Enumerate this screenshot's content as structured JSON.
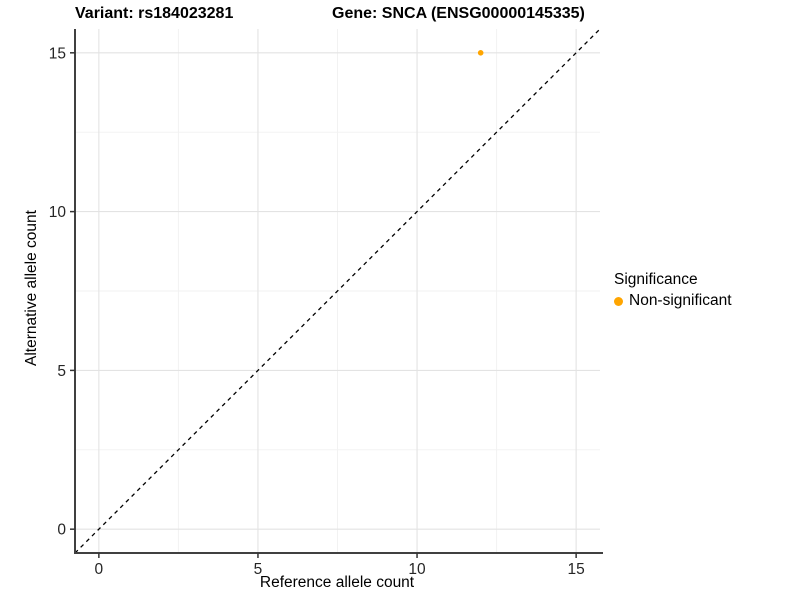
{
  "titles": {
    "variant": "Variant: rs184023281",
    "gene": "Gene: SNCA (ENSG00000145335)"
  },
  "legend": {
    "title": "Significance",
    "items": [
      {
        "label": "Non-significant",
        "color": "#FFA500"
      }
    ]
  },
  "colors": {
    "background": "#FFFFFF",
    "grid_major": "#E3E3E3",
    "grid_minor": "#F1F1F1",
    "axis_line": "#404040",
    "tick_mark": "#333333",
    "tick_text": "#262626",
    "identity_line": "#000000",
    "point": "#FFA500"
  },
  "chart_data": {
    "type": "scatter",
    "title_left": "Variant: rs184023281",
    "title_right": "Gene: SNCA (ENSG00000145335)",
    "xlabel": "Reference allele count",
    "ylabel": "Alternative allele count",
    "xlim": [
      -0.75,
      15.75
    ],
    "ylim": [
      -0.75,
      15.75
    ],
    "xticks": [
      0,
      5,
      10,
      15
    ],
    "yticks": [
      0,
      5,
      10,
      15
    ],
    "x_minor_gridlines": [
      2.5,
      7.5,
      12.5
    ],
    "y_minor_gridlines": [
      2.5,
      7.5,
      12.5
    ],
    "grid": "on",
    "legend_position": "right",
    "legend_title": "Significance",
    "identity_line": {
      "from": [
        -0.75,
        -0.75
      ],
      "to": [
        15.75,
        15.75
      ],
      "style": "dashed"
    },
    "series": [
      {
        "name": "Non-significant",
        "color": "#FFA500",
        "points": [
          {
            "x": 12,
            "y": 15
          }
        ]
      }
    ]
  }
}
